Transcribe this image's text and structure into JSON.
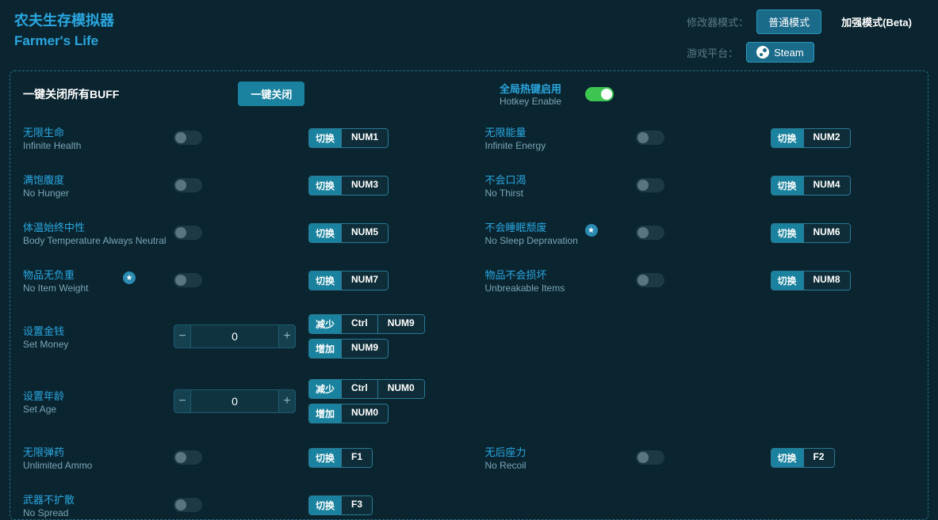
{
  "header": {
    "title_cn": "农夫生存模拟器",
    "title_en": "Farmer's Life",
    "mode_label": "修改器模式：",
    "mode_normal": "普通模式",
    "mode_beta": "加强模式(Beta)",
    "platform_label": "游戏平台：",
    "platform_btn": "Steam"
  },
  "top": {
    "close_buff_label": "一键关闭所有BUFF",
    "close_buff_btn": "一键关闭",
    "hotkey_cn": "全局热键启用",
    "hotkey_en": "Hotkey Enable"
  },
  "tags": {
    "toggle": "切换",
    "dec": "减少",
    "inc": "增加",
    "ctrl": "Ctrl"
  },
  "cheats": {
    "health": {
      "cn": "无限生命",
      "en": "Infinite Health",
      "key": "NUM1"
    },
    "energy": {
      "cn": "无限能量",
      "en": "Infinite Energy",
      "key": "NUM2"
    },
    "hunger": {
      "cn": "满饱腹度",
      "en": "No Hunger",
      "key": "NUM3"
    },
    "thirst": {
      "cn": "不会口渴",
      "en": "No Thirst",
      "key": "NUM4"
    },
    "temp": {
      "cn": "体温始终中性",
      "en": "Body Temperature Always Neutral",
      "key": "NUM5"
    },
    "sleep": {
      "cn": "不会睡眠颓废",
      "en": "No Sleep Depravation",
      "key": "NUM6"
    },
    "weight": {
      "cn": "物品无负重",
      "en": "No Item Weight",
      "key": "NUM7"
    },
    "unbreak": {
      "cn": "物品不会损坏",
      "en": "Unbreakable Items",
      "key": "NUM8"
    },
    "money": {
      "cn": "设置金钱",
      "en": "Set Money",
      "value": "0",
      "key": "NUM9"
    },
    "age": {
      "cn": "设置年龄",
      "en": "Set Age",
      "value": "0",
      "key": "NUM0"
    },
    "ammo": {
      "cn": "无限弹药",
      "en": "Unlimited Ammo",
      "key": "F1"
    },
    "recoil": {
      "cn": "无后座力",
      "en": "No Recoil",
      "key": "F2"
    },
    "spread": {
      "cn": "武器不扩散",
      "en": "No Spread",
      "key": "F3"
    }
  }
}
